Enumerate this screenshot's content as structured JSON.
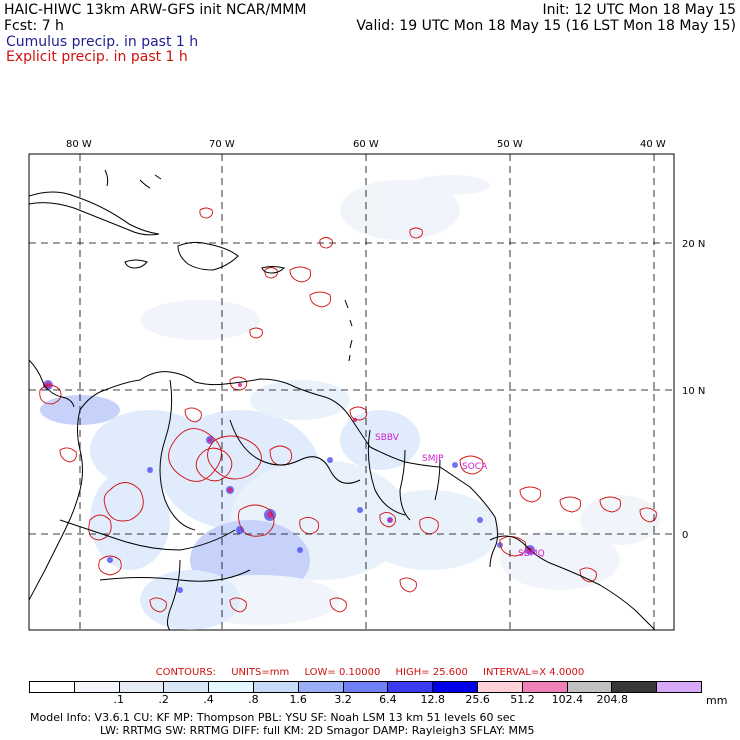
{
  "header": {
    "model_line": "HAIC-HIWC 13km ARW-GFS init   NCAR/MMM",
    "init_line": "Init: 12 UTC Mon 18 May 15",
    "fcst_line": "Fcst:    7 h",
    "valid_line": "Valid: 19 UTC Mon 18 May 15 (16 LST Mon 18 May 15)",
    "legend_cumulus": "Cumulus precip. in past 1 h",
    "legend_explicit": "Explicit precip. in past 1 h"
  },
  "map": {
    "lon_labels": [
      "80 W",
      "70 W",
      "60 W",
      "50 W",
      "40 W"
    ],
    "lat_labels": [
      "20 N",
      "10 N",
      "0"
    ],
    "stations": [
      "SBBV",
      "SMJP",
      "SOCA",
      "SBMQ"
    ],
    "colors": {
      "explicit_contour": "#d01010",
      "station": "#d020d0",
      "coast": "#000000",
      "grid": "#000000"
    }
  },
  "contour_info": {
    "label": "CONTOURS:",
    "units": "UNITS=mm",
    "low": "LOW= 0.10000",
    "high": "HIGH= 25.600",
    "interval": "INTERVAL=X  4.0000"
  },
  "colorbar": {
    "colors": [
      "#ffffff",
      "#f4f6fb",
      "#e6ecf6",
      "#d8e6f6",
      "#e4f8ff",
      "#c8dcfa",
      "#9aaef8",
      "#6e80f4",
      "#3a3af0",
      "#0000e8",
      "#ffd0d8",
      "#f080b8",
      "#c0c0c0",
      "#383838",
      "#d8a8f8"
    ],
    "tick_labels": [
      ".1",
      ".2",
      ".4",
      ".8",
      "1.6",
      "3.2",
      "6.4",
      "12.8",
      "25.6",
      "51.2",
      "102.4",
      "204.8"
    ],
    "unit": "mm"
  },
  "model_info": {
    "line1": "Model Info: V3.6.1    CU: KF       MP: Thompson      PBL: YSU       SF: Noah LSM      13 km    51 levels   60 sec",
    "line2": "LW: RRTMG     SW: RRTMG   DIFF: full     KM: 2D Smagor  DAMP: Rayleigh3   SFLAY: MM5"
  }
}
